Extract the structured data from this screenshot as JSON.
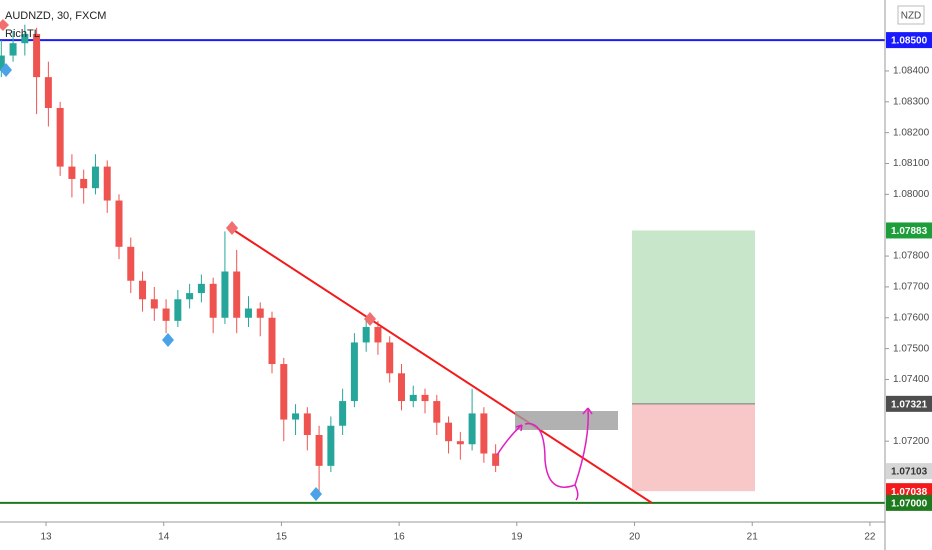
{
  "chart_data": {
    "type": "candlestick",
    "title": "AUDNZD, 30, FXCM",
    "indicator": "RichTL",
    "currency": "NZD",
    "x": [
      12.62,
      12.72,
      12.82,
      12.92,
      13.02,
      13.12,
      13.22,
      13.32,
      13.42,
      13.52,
      13.62,
      13.72,
      13.82,
      13.92,
      14.02,
      14.12,
      14.22,
      14.32,
      14.42,
      14.52,
      14.62,
      14.72,
      14.82,
      14.92,
      15.02,
      15.12,
      15.22,
      15.32,
      15.42,
      15.52,
      15.62,
      15.72,
      15.82,
      15.92,
      16.02,
      16.12,
      16.22,
      16.32,
      16.42,
      16.52,
      16.62,
      16.72,
      16.82
    ],
    "open": [
      1.084,
      1.0845,
      1.0849,
      1.0852,
      1.0838,
      1.0828,
      1.0809,
      1.0805,
      1.0802,
      1.0809,
      1.0798,
      1.0783,
      1.0772,
      1.0766,
      1.0763,
      1.0759,
      1.0766,
      1.0768,
      1.0771,
      1.076,
      1.0775,
      1.076,
      1.0763,
      1.076,
      1.0745,
      1.0727,
      1.0729,
      1.0722,
      1.0712,
      1.0725,
      1.0733,
      1.0752,
      1.0757,
      1.0752,
      1.0742,
      1.0733,
      1.0735,
      1.0733,
      1.0726,
      1.072,
      1.0719,
      1.0729,
      1.0716
    ],
    "high": [
      1.085,
      1.0853,
      1.0855,
      1.0854,
      1.0843,
      1.083,
      1.0813,
      1.0808,
      1.0813,
      1.0811,
      1.08,
      1.0786,
      1.0775,
      1.077,
      1.0766,
      1.0769,
      1.0771,
      1.0774,
      1.0773,
      1.0788,
      1.0782,
      1.0767,
      1.0765,
      1.0762,
      1.0747,
      1.0732,
      1.0731,
      1.0725,
      1.0728,
      1.0737,
      1.0755,
      1.076,
      1.0759,
      1.0754,
      1.0745,
      1.0738,
      1.0737,
      1.0735,
      1.0728,
      1.0723,
      1.0737,
      1.0731,
      1.0719
    ],
    "low": [
      1.0838,
      1.0843,
      1.0845,
      1.0826,
      1.0822,
      1.0806,
      1.0799,
      1.0797,
      1.08,
      1.0794,
      1.0779,
      1.0768,
      1.0762,
      1.0759,
      1.0755,
      1.0757,
      1.0763,
      1.0765,
      1.0755,
      1.0758,
      1.0755,
      1.0757,
      1.0754,
      1.0742,
      1.072,
      1.0722,
      1.0717,
      1.0702,
      1.071,
      1.0722,
      1.0731,
      1.0749,
      1.0748,
      1.0739,
      1.073,
      1.0731,
      1.0729,
      1.0722,
      1.0716,
      1.0714,
      1.0717,
      1.0713,
      1.071
    ],
    "close": [
      1.0845,
      1.0849,
      1.0852,
      1.0838,
      1.0828,
      1.0809,
      1.0805,
      1.0802,
      1.0809,
      1.0798,
      1.0783,
      1.0772,
      1.0766,
      1.0763,
      1.0759,
      1.0766,
      1.0768,
      1.0771,
      1.076,
      1.0775,
      1.076,
      1.0763,
      1.076,
      1.0745,
      1.0727,
      1.0729,
      1.0722,
      1.0712,
      1.0725,
      1.0733,
      1.0752,
      1.0757,
      1.0752,
      1.0742,
      1.0733,
      1.0735,
      1.0733,
      1.0726,
      1.072,
      1.0719,
      1.0729,
      1.0716,
      1.0712
    ],
    "up_color": "#26a69a",
    "down_color": "#ef5350",
    "xlim": [
      12.609,
      20.128
    ],
    "ylim": [
      1.06938,
      1.0863
    ],
    "xticks": [
      13,
      14,
      15,
      16,
      {
        "value": 17,
        "label": "19"
      },
      {
        "value": 18,
        "label": "20"
      },
      {
        "value": 19,
        "label": "21"
      },
      {
        "value": 20,
        "label": "22"
      }
    ],
    "yticks": [
      {
        "value": 1.084,
        "label": "1.08400"
      },
      {
        "value": 1.083,
        "label": "1.08300"
      },
      {
        "value": 1.082,
        "label": "1.08200"
      },
      {
        "value": 1.081,
        "label": "1.08100"
      },
      {
        "value": 1.08,
        "label": "1.08000"
      },
      {
        "value": 1.078,
        "label": "1.07800"
      },
      {
        "value": 1.077,
        "label": "1.07700"
      },
      {
        "value": 1.076,
        "label": "1.07600"
      },
      {
        "value": 1.075,
        "label": "1.07500"
      },
      {
        "value": 1.074,
        "label": "1.07400"
      },
      {
        "value": 1.072,
        "label": "1.07200"
      }
    ],
    "price_lines": [
      {
        "value": 1.085,
        "label": "1.08500",
        "color": "#1a1aff"
      },
      {
        "value": 1.07883,
        "label": "1.07883",
        "color": "#1e9e3a"
      },
      {
        "value": 1.07321,
        "label": "1.07321",
        "color": "#4d4d4d"
      },
      {
        "value": 1.07103,
        "label": "1.07103",
        "color": "#d6d6d6"
      },
      {
        "value": 1.07038,
        "label": "1.07038",
        "color": "#f21a1a"
      },
      {
        "value": 1.07,
        "label": "1.07000",
        "color": "#1e7a1e"
      }
    ]
  }
}
